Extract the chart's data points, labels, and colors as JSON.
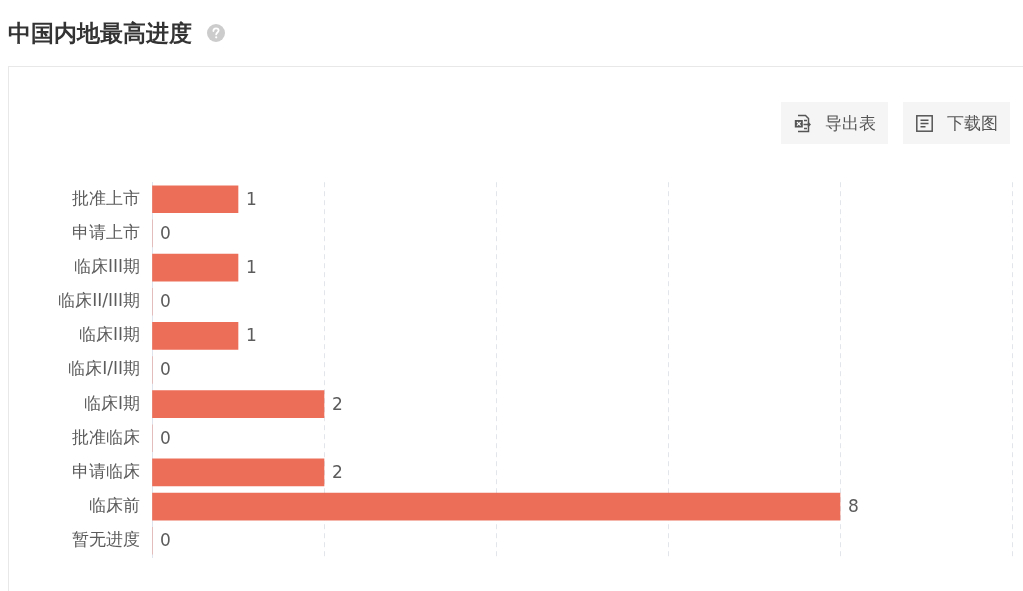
{
  "chart_data": {
    "type": "bar",
    "title": "中国内地最高进度",
    "orientation": "horizontal",
    "categories": [
      "批准上市",
      "申请上市",
      "临床III期",
      "临床II/III期",
      "临床II期",
      "临床I/II期",
      "临床I期",
      "批准临床",
      "申请临床",
      "临床前",
      "暂无进度"
    ],
    "values": [
      1,
      0,
      1,
      0,
      1,
      0,
      2,
      0,
      2,
      8,
      0
    ],
    "color": "#ec6e58",
    "xlim": [
      0,
      10
    ],
    "xticks": [
      {
        "value": 0,
        "label": null
      },
      {
        "value": 2,
        "label": null
      },
      {
        "value": 4,
        "label": null
      },
      {
        "value": 6,
        "label": null
      },
      {
        "value": 8,
        "label": null
      },
      {
        "value": 10,
        "label": null
      }
    ],
    "grid": "x",
    "tick_labels": "y",
    "data_labels": true,
    "legend": false,
    "annotations": [
      "导出表",
      "下载图"
    ]
  }
}
